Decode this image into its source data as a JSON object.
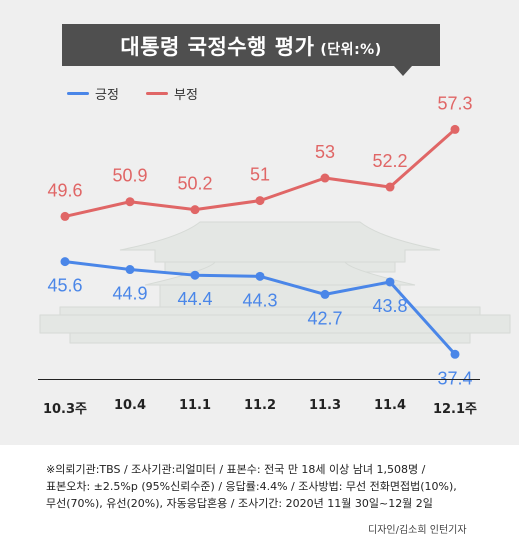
{
  "title": "대통령 국정수행 평가",
  "unit": "(단위:%)",
  "legend": {
    "positive": "긍정",
    "negative": "부정"
  },
  "colors": {
    "positive": "#4a86e8",
    "negative": "#e06666",
    "title_bg": "#4f4f4f",
    "background": "#efefef"
  },
  "chart_data": {
    "type": "line",
    "categories": [
      "10.3주",
      "10.4",
      "11.1",
      "11.2",
      "11.3",
      "11.4",
      "12.1주"
    ],
    "series": [
      {
        "name": "긍정",
        "values": [
          45.6,
          44.9,
          44.4,
          44.3,
          42.7,
          43.8,
          37.4
        ],
        "labels": [
          "45.6",
          "44.9",
          "44.4",
          "44.3",
          "42.7",
          "43.8",
          "37.4"
        ]
      },
      {
        "name": "부정",
        "values": [
          49.6,
          50.9,
          50.2,
          51,
          53,
          52.2,
          57.3
        ],
        "labels": [
          "49.6",
          "50.9",
          "50.2",
          "51",
          "53",
          "52.2",
          "57.3"
        ]
      }
    ],
    "grid": false,
    "legend_position": "top-left"
  },
  "footnote": [
    "※의뢰기관:TBS / 조사기관:리얼미터 / 표본수: 전국 만 18세 이상 남녀 1,508명 /",
    "표본오차: ±2.5%p (95%신뢰수준) / 응답률:4.4% / 조사방법: 무선 전화면접법(10%),",
    "무선(70%), 유선(20%), 자동응답혼용 / 조사기간: 2020년 11월 30일~12월 2일"
  ],
  "credit": "디자인/김소희 인턴기자"
}
